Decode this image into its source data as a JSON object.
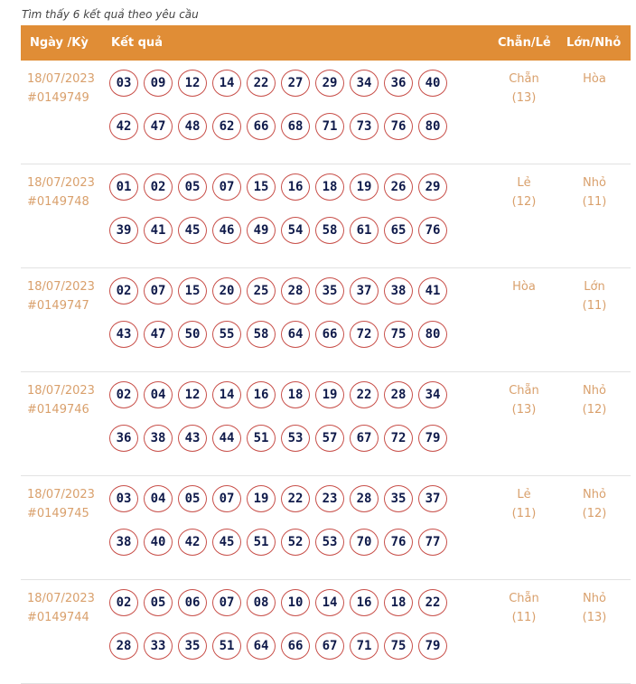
{
  "caption": "Tìm thấy 6 kết quả theo yêu cầu",
  "header": {
    "date": "Ngày /Kỳ",
    "result": "Kết quả",
    "even_odd": "Chẵn/Lẻ",
    "big_small": "Lớn/Nhỏ"
  },
  "colors": {
    "header": "#e08d36",
    "ball_border": "#c8504a",
    "ball_text": "#0f1a4a",
    "muted_text": "#d9a06c"
  },
  "rows": [
    {
      "date": "18/07/2023",
      "draw": "#0149749",
      "numbers": [
        "03",
        "09",
        "12",
        "14",
        "22",
        "27",
        "29",
        "34",
        "36",
        "40",
        "42",
        "47",
        "48",
        "62",
        "66",
        "68",
        "71",
        "73",
        "76",
        "80"
      ],
      "even_odd": "Chẵn",
      "even_odd_count": "(13)",
      "big_small": "Hòa",
      "big_small_count": ""
    },
    {
      "date": "18/07/2023",
      "draw": "#0149748",
      "numbers": [
        "01",
        "02",
        "05",
        "07",
        "15",
        "16",
        "18",
        "19",
        "26",
        "29",
        "39",
        "41",
        "45",
        "46",
        "49",
        "54",
        "58",
        "61",
        "65",
        "76"
      ],
      "even_odd": "Lẻ",
      "even_odd_count": "(12)",
      "big_small": "Nhỏ",
      "big_small_count": "(11)"
    },
    {
      "date": "18/07/2023",
      "draw": "#0149747",
      "numbers": [
        "02",
        "07",
        "15",
        "20",
        "25",
        "28",
        "35",
        "37",
        "38",
        "41",
        "43",
        "47",
        "50",
        "55",
        "58",
        "64",
        "66",
        "72",
        "75",
        "80"
      ],
      "even_odd": "Hòa",
      "even_odd_count": "",
      "big_small": "Lớn",
      "big_small_count": "(11)"
    },
    {
      "date": "18/07/2023",
      "draw": "#0149746",
      "numbers": [
        "02",
        "04",
        "12",
        "14",
        "16",
        "18",
        "19",
        "22",
        "28",
        "34",
        "36",
        "38",
        "43",
        "44",
        "51",
        "53",
        "57",
        "67",
        "72",
        "79"
      ],
      "even_odd": "Chẵn",
      "even_odd_count": "(13)",
      "big_small": "Nhỏ",
      "big_small_count": "(12)"
    },
    {
      "date": "18/07/2023",
      "draw": "#0149745",
      "numbers": [
        "03",
        "04",
        "05",
        "07",
        "19",
        "22",
        "23",
        "28",
        "35",
        "37",
        "38",
        "40",
        "42",
        "45",
        "51",
        "52",
        "53",
        "70",
        "76",
        "77"
      ],
      "even_odd": "Lẻ",
      "even_odd_count": "(11)",
      "big_small": "Nhỏ",
      "big_small_count": "(12)"
    },
    {
      "date": "18/07/2023",
      "draw": "#0149744",
      "numbers": [
        "02",
        "05",
        "06",
        "07",
        "08",
        "10",
        "14",
        "16",
        "18",
        "22",
        "28",
        "33",
        "35",
        "51",
        "64",
        "66",
        "67",
        "71",
        "75",
        "79"
      ],
      "even_odd": "Chẵn",
      "even_odd_count": "(11)",
      "big_small": "Nhỏ",
      "big_small_count": "(13)"
    }
  ]
}
